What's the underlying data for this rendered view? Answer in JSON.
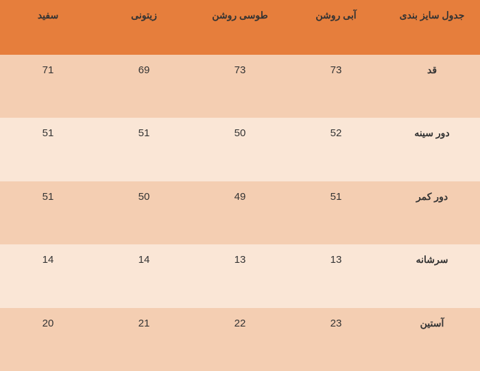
{
  "table": {
    "type": "table",
    "title": "جدول سایز بندی",
    "columns": [
      "آبی روشن",
      "طوسی روشن",
      "زیتونی",
      "سفید"
    ],
    "rowLabels": [
      "قد",
      "دور سینه",
      "دور کمر",
      "سرشانه",
      "آستین"
    ],
    "rows": [
      [
        73,
        73,
        69,
        71
      ],
      [
        52,
        50,
        51,
        51
      ],
      [
        51,
        49,
        50,
        51
      ],
      [
        13,
        13,
        14,
        14
      ],
      [
        23,
        22,
        21,
        20
      ]
    ],
    "colors": {
      "header_bg": "#e67e3c",
      "header_text": "#333333",
      "row_odd_bg": "#f4ceb2",
      "row_even_bg": "#fae6d6",
      "data_text": "#333333",
      "label_text": "#333333"
    },
    "font_sizes": {
      "header": 14,
      "label": 14,
      "data": 15
    }
  }
}
